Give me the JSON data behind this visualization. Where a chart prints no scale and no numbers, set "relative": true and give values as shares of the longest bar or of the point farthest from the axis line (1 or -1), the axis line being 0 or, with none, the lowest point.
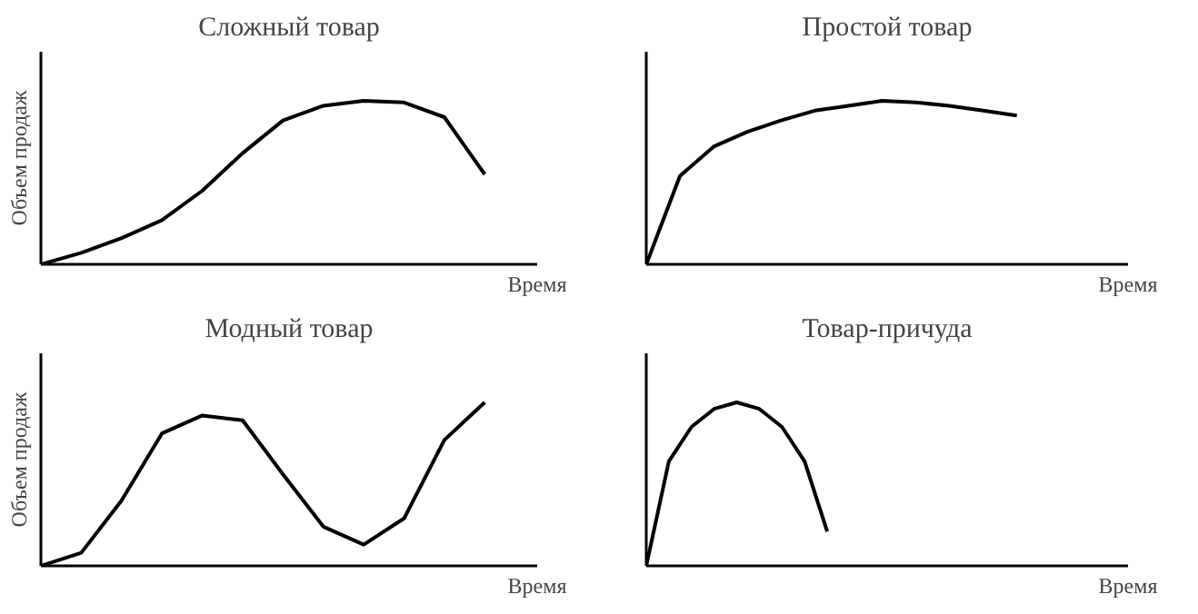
{
  "chart_data": [
    {
      "type": "line",
      "title": "Сложный товар",
      "xlabel": "Время",
      "ylabel": "Объем продаж",
      "relative": true,
      "color": "#000000",
      "categories": [
        null,
        null,
        null,
        null,
        null,
        null,
        null,
        null,
        null,
        null,
        null,
        null,
        null
      ],
      "values": [
        0,
        0.07,
        0.16,
        0.27,
        0.45,
        0.68,
        0.88,
        0.97,
        1,
        0.99,
        0.9,
        0.55,
        null
      ]
    },
    {
      "type": "line",
      "title": "Простой товар",
      "xlabel": "Время",
      "relative": true,
      "color": "#000000",
      "categories": [
        null,
        null,
        null,
        null,
        null,
        null,
        null,
        null,
        null,
        null,
        null,
        null,
        null,
        null,
        null
      ],
      "values": [
        0,
        0.54,
        0.72,
        0.81,
        0.88,
        0.94,
        0.97,
        1,
        0.99,
        0.97,
        0.94,
        0.91,
        null,
        null,
        null
      ]
    },
    {
      "type": "line",
      "title": "Модный товар",
      "xlabel": "Время",
      "ylabel": "Объем продаж",
      "relative": true,
      "color": "#000000",
      "categories": [
        null,
        null,
        null,
        null,
        null,
        null,
        null,
        null,
        null,
        null,
        null,
        null,
        null
      ],
      "values": [
        0,
        0.08,
        0.4,
        0.81,
        0.92,
        0.89,
        0.56,
        0.24,
        0.13,
        0.29,
        0.77,
        1,
        null
      ]
    },
    {
      "type": "line",
      "title": "Товар-причуда",
      "xlabel": "Время",
      "relative": true,
      "color": "#000000",
      "categories": [
        null,
        null,
        null,
        null,
        null,
        null,
        null,
        null,
        null,
        null,
        null,
        null,
        null,
        null,
        null,
        null,
        null,
        null,
        null,
        null,
        null,
        null
      ],
      "values": [
        0,
        0.64,
        0.85,
        0.96,
        1,
        0.96,
        0.85,
        0.64,
        0.21,
        null,
        null,
        null,
        null,
        null,
        null,
        null,
        null,
        null,
        null,
        null,
        null,
        null
      ]
    }
  ]
}
